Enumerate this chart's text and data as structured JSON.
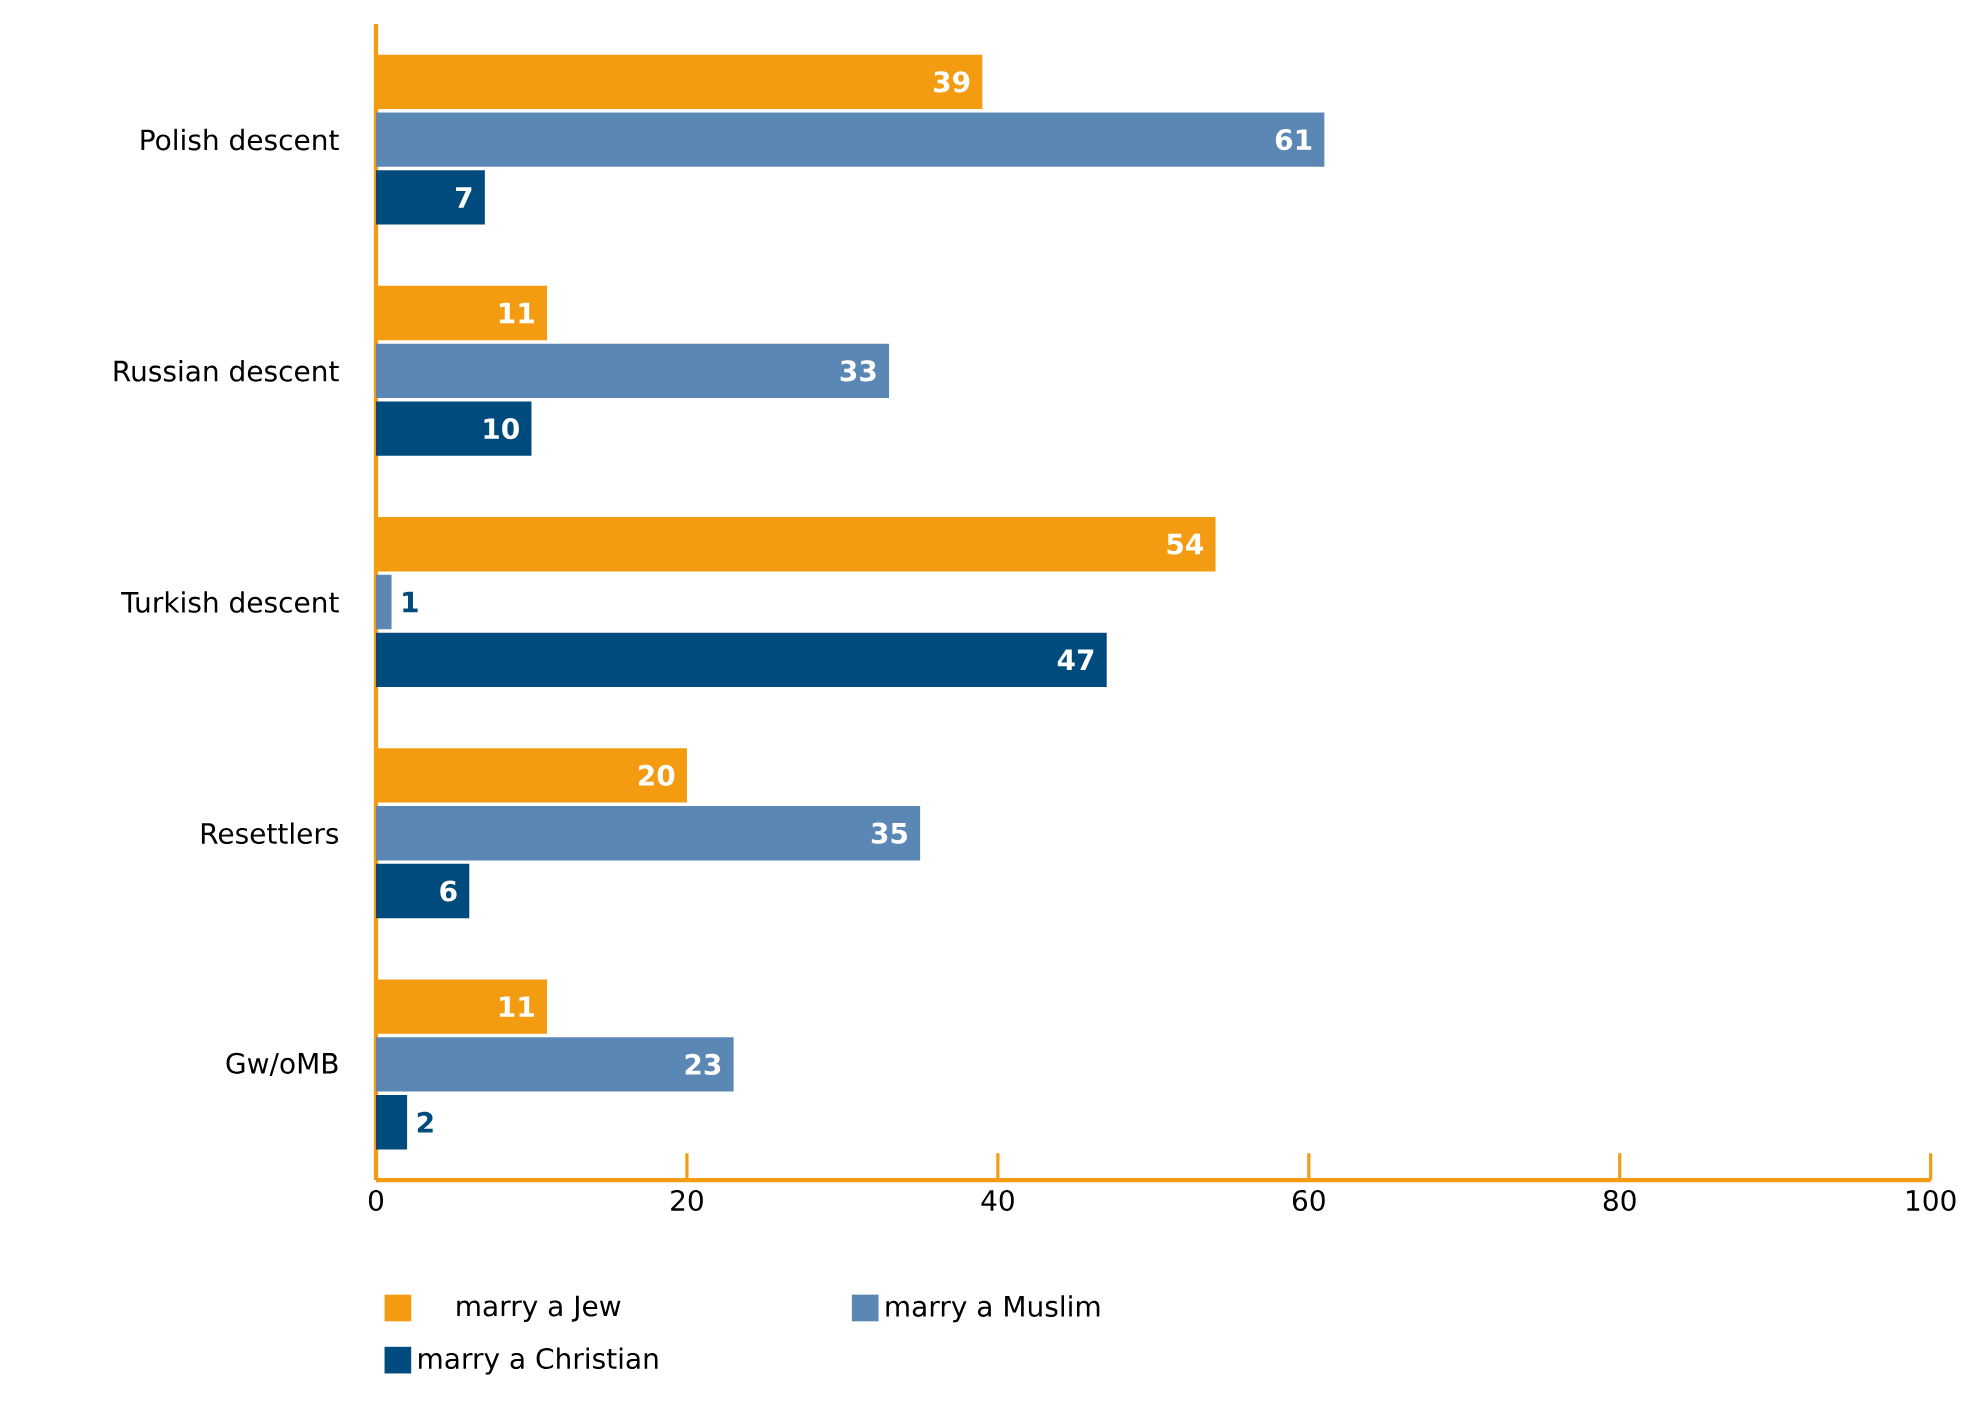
{
  "chart_data": {
    "type": "bar",
    "orientation": "horizontal",
    "categories": [
      "Polish descent",
      "Russian descent",
      "Turkish descent",
      "Resettlers",
      "Gw/oMB"
    ],
    "series": [
      {
        "name": "marry a Jew",
        "color": "#f39c12",
        "values": [
          39,
          11,
          54,
          20,
          11
        ],
        "value_labels": [
          "39",
          "11",
          "54",
          "20",
          "11"
        ]
      },
      {
        "name": "marry a Muslim",
        "color": "#5b87b4",
        "values": [
          61,
          33,
          1,
          35,
          23
        ],
        "value_labels": [
          "61",
          "33",
          "1",
          "35",
          "23"
        ]
      },
      {
        "name": "marry a Christian",
        "color": "#004b7e",
        "values": [
          7,
          10,
          47,
          6,
          2
        ],
        "value_labels": [
          "7",
          "10",
          "47",
          "6",
          "2"
        ]
      }
    ],
    "xlim": [
      0,
      100
    ],
    "xticks": [
      0,
      20,
      40,
      60,
      80,
      100
    ],
    "legend": "bottom"
  }
}
